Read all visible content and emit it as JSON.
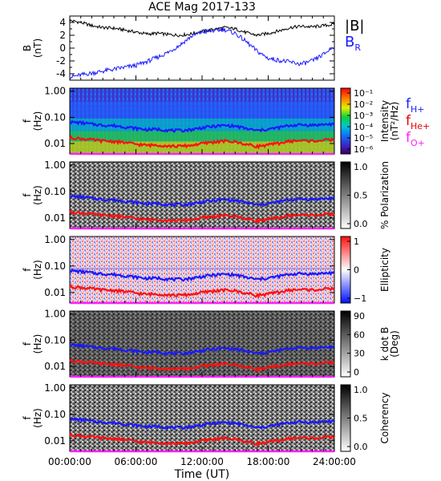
{
  "title": "ACE Mag 2017-133",
  "xaxis": {
    "label": "Time (UT)",
    "ticks": [
      "00:00:00",
      "06:00:00",
      "12:00:00",
      "18:00:00",
      "24:00:00"
    ],
    "range_hours": [
      0,
      24
    ]
  },
  "legend_field": [
    {
      "label": "|B|",
      "color": "#000000"
    },
    {
      "label": "B",
      "sub": "R",
      "color": "#1a1aff"
    }
  ],
  "legend_freq": [
    {
      "label": "f",
      "sub": "H+",
      "color": "#1a1aff"
    },
    {
      "label": "f",
      "sub": "He+",
      "color": "#e00000"
    },
    {
      "label": "f",
      "sub": "O+",
      "color": "#ff20ff"
    }
  ],
  "colors": {
    "B_total": "#000000",
    "B_R": "#1a1aff",
    "f_H": "#1a1aff",
    "f_He": "#ff1010",
    "f_O": "#ff20ff"
  },
  "chart_data": [
    {
      "type": "line",
      "panel": "field",
      "ylabel": [
        "B",
        "(nT)"
      ],
      "yticks": [
        "4",
        "2",
        "0",
        "-2",
        "-4"
      ],
      "ylim": [
        -5,
        5
      ],
      "x_hours": [
        0,
        1,
        2,
        3,
        4,
        5,
        6,
        7,
        8,
        9,
        10,
        11,
        12,
        13,
        14,
        15,
        16,
        17,
        18,
        19,
        20,
        21,
        22,
        23,
        24
      ],
      "series": [
        {
          "name": "|B|",
          "values": [
            4.3,
            4.0,
            3.5,
            3.2,
            3.1,
            2.8,
            2.5,
            2.2,
            2.3,
            2.1,
            2.0,
            2.2,
            2.6,
            2.9,
            3.2,
            3.0,
            2.4,
            2.0,
            2.3,
            2.7,
            3.2,
            3.4,
            3.3,
            3.5,
            3.7
          ]
        },
        {
          "name": "B_R",
          "values": [
            -4.5,
            -4.2,
            -3.9,
            -3.6,
            -3.3,
            -3.0,
            -2.7,
            -2.1,
            -1.4,
            -0.6,
            0.5,
            1.8,
            2.5,
            2.7,
            2.9,
            2.3,
            1.0,
            -0.5,
            -1.6,
            -1.9,
            -2.2,
            -2.5,
            -2.0,
            -1.0,
            0.3
          ]
        }
      ]
    },
    {
      "type": "heatmap",
      "panel": "intensity",
      "ylabel": [
        "f",
        "(Hz)"
      ],
      "yticks": [
        "1.00",
        "0.10",
        "0.01"
      ],
      "ylim_hz": [
        0.004,
        1.3
      ],
      "yscale": "log",
      "colorbar": {
        "label": [
          "Intensity",
          "(nT²/Hz)"
        ],
        "scale": "log",
        "ticks": [
          "10⁻¹",
          "10⁻²",
          "10⁻³",
          "10⁻⁴",
          "10⁻⁵",
          "10⁻⁶"
        ],
        "colormap": "rainbow"
      }
    },
    {
      "type": "heatmap",
      "panel": "polarization",
      "ylabel": [
        "f",
        "(Hz)"
      ],
      "yticks": [
        "1.00",
        "0.10",
        "0.01"
      ],
      "ylim_hz": [
        0.004,
        1.3
      ],
      "yscale": "log",
      "colorbar": {
        "label": [
          "% Polarization"
        ],
        "ticks": [
          "1.0",
          "0.5",
          "0.0"
        ],
        "colormap": "grayscale"
      }
    },
    {
      "type": "heatmap",
      "panel": "ellipticity",
      "ylabel": [
        "f",
        "(Hz)"
      ],
      "yticks": [
        "1.00",
        "0.10",
        "0.01"
      ],
      "ylim_hz": [
        0.004,
        1.3
      ],
      "yscale": "log",
      "colorbar": {
        "label": [
          "Ellipticity"
        ],
        "ticks": [
          "1",
          "0",
          "−1"
        ],
        "colormap": "blue-white-red"
      }
    },
    {
      "type": "heatmap",
      "panel": "kdotb",
      "ylabel": [
        "f",
        "(Hz)"
      ],
      "yticks": [
        "1.00",
        "0.10",
        "0.01"
      ],
      "ylim_hz": [
        0.004,
        1.3
      ],
      "yscale": "log",
      "colorbar": {
        "label": [
          "k dot B",
          "(Deg)"
        ],
        "ticks": [
          "90",
          "60",
          "30",
          "0"
        ],
        "colormap": "grayscale"
      }
    },
    {
      "type": "heatmap",
      "panel": "coherency",
      "ylabel": [
        "f",
        "(Hz)"
      ],
      "yticks": [
        "1.00",
        "0.10",
        "0.01"
      ],
      "ylim_hz": [
        0.004,
        1.3
      ],
      "yscale": "log",
      "colorbar": {
        "label": [
          "Coherency"
        ],
        "ticks": [
          "1.0",
          "0.5",
          "0.0"
        ],
        "colormap": "grayscale"
      }
    },
    {
      "type": "line",
      "panel": "gyrofrequency-overlays",
      "x_hours": [
        0,
        1,
        2,
        3,
        4,
        5,
        6,
        7,
        8,
        9,
        10,
        11,
        12,
        13,
        14,
        15,
        16,
        17,
        18,
        19,
        20,
        21,
        22,
        23,
        24
      ],
      "series": [
        {
          "name": "f_H+",
          "values": [
            0.066,
            0.062,
            0.055,
            0.05,
            0.048,
            0.043,
            0.038,
            0.034,
            0.035,
            0.032,
            0.031,
            0.034,
            0.04,
            0.045,
            0.049,
            0.046,
            0.037,
            0.031,
            0.035,
            0.041,
            0.049,
            0.052,
            0.05,
            0.053,
            0.056
          ]
        },
        {
          "name": "f_He+",
          "values": [
            0.0165,
            0.0155,
            0.0138,
            0.0125,
            0.012,
            0.0108,
            0.0095,
            0.0085,
            0.0088,
            0.008,
            0.0078,
            0.0085,
            0.01,
            0.0113,
            0.0123,
            0.0115,
            0.0093,
            0.0078,
            0.0088,
            0.0103,
            0.0123,
            0.013,
            0.0125,
            0.0133,
            0.014
          ]
        },
        {
          "name": "f_O+",
          "values": [
            0.0041,
            0.0039,
            0.0034,
            0.0031,
            0.003,
            0.0027,
            0.0024,
            0.0021,
            0.0022,
            0.002,
            0.0019,
            0.0021,
            0.0025,
            0.0028,
            0.0031,
            0.0029,
            0.0023,
            0.0019,
            0.0022,
            0.0026,
            0.0031,
            0.0033,
            0.0031,
            0.0033,
            0.0035
          ]
        }
      ]
    }
  ]
}
